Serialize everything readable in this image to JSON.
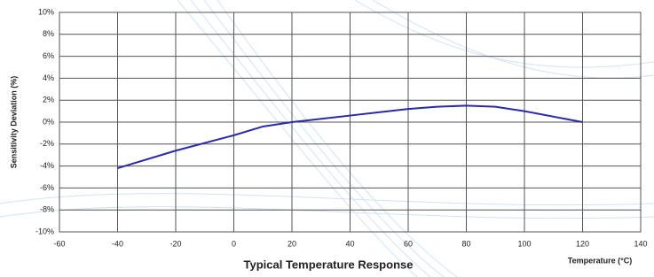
{
  "chart_data": {
    "type": "line",
    "title": "Typical Temperature Response",
    "x_label": "Temperature (°C)",
    "y_label": "Sensitivity Deviation (%)",
    "x": [
      -40,
      -20,
      0,
      10,
      20,
      40,
      60,
      70,
      80,
      90,
      100,
      120
    ],
    "series": [
      {
        "color": "#2a2aa8",
        "values": [
          -4.2,
          -2.6,
          -1.2,
          -0.4,
          0,
          0.6,
          1.2,
          1.4,
          1.5,
          1.4,
          1.0,
          0
        ]
      }
    ],
    "xlim": [
      -60,
      140
    ],
    "xticks": [
      -60,
      -40,
      -20,
      0,
      20,
      40,
      60,
      80,
      100,
      120,
      140
    ],
    "ylim": [
      -10,
      10
    ],
    "yticks": [
      {
        "value": -10,
        "label": "-10%"
      },
      {
        "value": -8,
        "label": "-8%"
      },
      {
        "value": -6,
        "label": "-6%"
      },
      {
        "value": -4,
        "label": "-4%"
      },
      {
        "value": -2,
        "label": "-2%"
      },
      {
        "value": 0,
        "label": "0%"
      },
      {
        "value": 2,
        "label": "2%"
      },
      {
        "value": 4,
        "label": "4%"
      },
      {
        "value": 6,
        "label": "6%"
      },
      {
        "value": 8,
        "label": "8%"
      },
      {
        "value": 10,
        "label": "10%"
      }
    ],
    "grid": true
  }
}
